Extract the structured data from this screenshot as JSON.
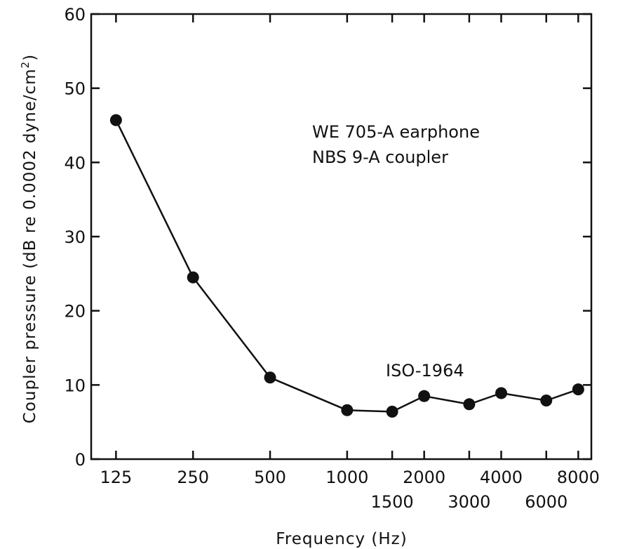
{
  "chart_data": {
    "type": "line",
    "xlabel": "Frequency (Hz)",
    "ylabel": {
      "main": "Coupler pressure (dB re 0.0002 dyne/cm",
      "sup": "2",
      "close": ")"
    },
    "x_scale": "log",
    "x_range": [
      100,
      9000
    ],
    "ylim": [
      0,
      60
    ],
    "y_ticks": [
      0,
      10,
      20,
      30,
      40,
      50,
      60
    ],
    "x_ticks_upper": [
      125,
      250,
      500,
      1000,
      2000,
      4000,
      8000
    ],
    "x_ticks_lower": [
      1500,
      3000,
      6000
    ],
    "grid": false,
    "series": [
      {
        "name": "ISO-1964",
        "x": [
          125,
          250,
          500,
          1000,
          1500,
          2000,
          3000,
          4000,
          6000,
          8000
        ],
        "y": [
          45.7,
          24.5,
          11.0,
          6.6,
          6.4,
          8.5,
          7.4,
          8.9,
          7.9,
          9.4
        ]
      }
    ],
    "annotations": {
      "series_label": "ISO-1964",
      "line1": "WE 705-A earphone",
      "line2": "NBS 9-A coupler"
    },
    "colors": {
      "line": "#111111",
      "marker": "#111111",
      "frame": "#111111"
    }
  }
}
